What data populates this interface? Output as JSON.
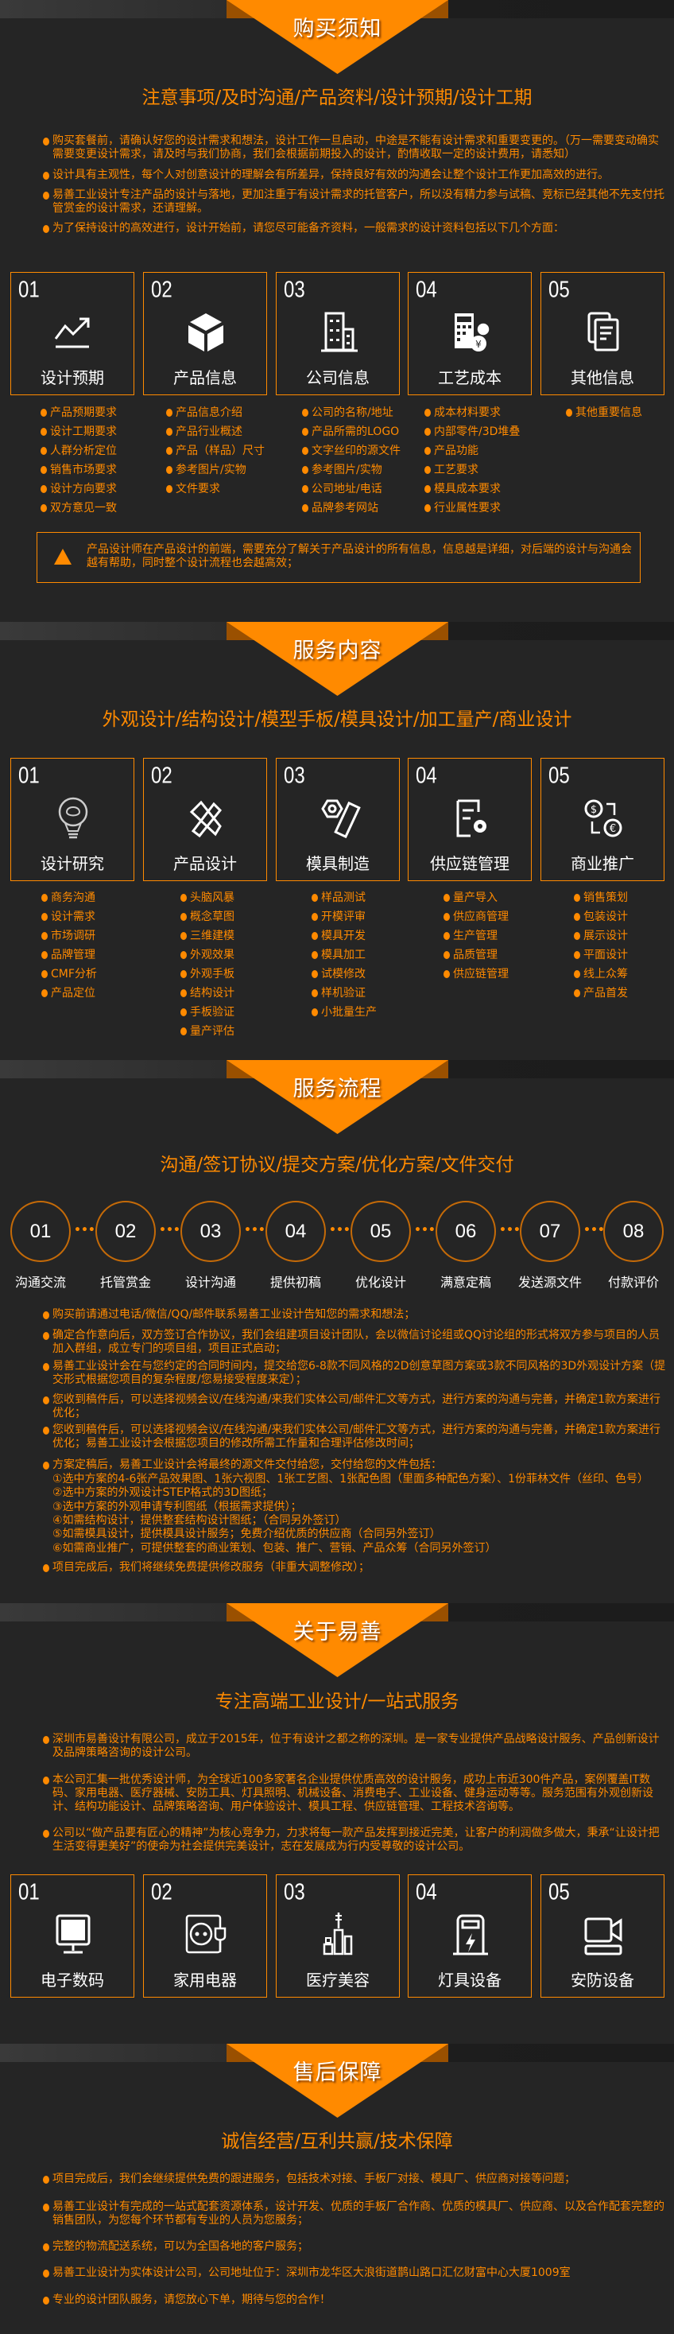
{
  "colors": {
    "accent": "#ff8a00",
    "background": "#252525",
    "text_light": "#ffffff"
  },
  "purchase": {
    "banner": "购买须知",
    "subtitle": "注意事项/及时沟通/产品资料/设计预期/设计工期",
    "bullets": [
      "购买套餐前，请确认好您的设计需求和想法，设计工作一旦启动，中途是不能有设计需求和重要变更的。（万一需要变动确实需要变更设计需求，请及时与我们协商，我们会根据前期投入的设计，酌情收取一定的设计费用，请悉知）",
      "设计具有主观性，每个人对创意设计的理解会有所差异，保持良好有效的沟通会让整个设计工作更加高效的进行。",
      "易善工业设计专注产品的设计与落地，更加注重于有设计需求的托管客户，所以没有精力参与试稿、竞标已经其他不先支付托管赏金的设计需求，还请理解。",
      "为了保持设计的高效进行，设计开始前，请您尽可能备齐资料，一般需求的设计资料包括以下几个方面："
    ],
    "cards": [
      {
        "num": "01",
        "label": "设计预期",
        "icon": "trend-chart-icon",
        "items": [
          "产品预期要求",
          "设计工期要求",
          "人群分析定位",
          "销售市场要求",
          "设计方向要求",
          "双方意见一致"
        ]
      },
      {
        "num": "02",
        "label": "产品信息",
        "icon": "cube-icon",
        "items": [
          "产品信息介绍",
          "产品行业概述",
          "产品（样品）尺寸",
          "参考图片/实物",
          "文件要求"
        ]
      },
      {
        "num": "03",
        "label": "公司信息",
        "icon": "building-icon",
        "items": [
          "公司的名称/地址",
          "产品所需的LOGO",
          "文字丝印的源文件",
          "参考图片/实物",
          "公司地址/电话",
          "品牌参考网站"
        ]
      },
      {
        "num": "04",
        "label": "工艺成本",
        "icon": "calculator-estimate-icon",
        "items": [
          "成本材料要求",
          "内部零件/3D堆叠",
          "产品功能",
          "工艺要求",
          "模具成本要求",
          "行业属性要求"
        ]
      },
      {
        "num": "05",
        "label": "其他信息",
        "icon": "documents-icon",
        "items": [
          "其他重要信息"
        ]
      }
    ],
    "notice": "产品设计师在产品设计的前端，需要充分了解关于产品设计的所有信息，信息越是详细，对后端的设计与沟通会越有帮助，同时整个设计流程也会越高效；"
  },
  "services": {
    "banner": "服务内容",
    "subtitle": "外观设计/结构设计/模型手板/模具设计/加工量产/商业设计",
    "cards": [
      {
        "num": "01",
        "label": "设计研究",
        "icon": "brain-bulb-icon",
        "items": [
          "商务沟通",
          "设计需求",
          "市场调研",
          "品牌管理",
          "CMF分析",
          "产品定位"
        ]
      },
      {
        "num": "02",
        "label": "产品设计",
        "icon": "pencil-ruler-icon",
        "items": [
          "头脑风暴",
          "概念草图",
          "三维建模",
          "外观效果",
          "外观手板",
          "结构设计",
          "手板验证",
          "量产评估"
        ]
      },
      {
        "num": "03",
        "label": "模具制造",
        "icon": "nut-bolt-icon",
        "items": [
          "样品测试",
          "开模评审",
          "模具开发",
          "模具加工",
          "试模修改",
          "样机验证",
          "小批量生产"
        ]
      },
      {
        "num": "04",
        "label": "供应链管理",
        "icon": "document-gear-icon",
        "items": [
          "量产导入",
          "供应商管理",
          "生产管理",
          "品质管理",
          "供应链管理"
        ]
      },
      {
        "num": "05",
        "label": "商业推广",
        "icon": "currency-exchange-icon",
        "items": [
          "销售策划",
          "包装设计",
          "展示设计",
          "平面设计",
          "线上众筹",
          "产品首发"
        ]
      }
    ]
  },
  "process": {
    "banner": "服务流程",
    "subtitle": "沟通/签订协议/提交方案/优化方案/文件交付",
    "steps": [
      {
        "num": "01",
        "label": "沟通交流"
      },
      {
        "num": "02",
        "label": "托管赏金"
      },
      {
        "num": "03",
        "label": "设计沟通"
      },
      {
        "num": "04",
        "label": "提供初稿"
      },
      {
        "num": "05",
        "label": "优化设计"
      },
      {
        "num": "06",
        "label": "满意定稿"
      },
      {
        "num": "07",
        "label": "发送源文件"
      },
      {
        "num": "08",
        "label": "付款评价"
      }
    ],
    "connector": "•••",
    "bullets": [
      "购买前请通过电话/微信/QQ/邮件联系易善工业设计告知您的需求和想法；",
      "确定合作意向后，双方签订合作协议，我们会组建项目设计团队，会以微信讨论组或QQ讨论组的形式将双方参与项目的人员加入群组，成立专门的项目组，项目正式启动；",
      "易善工业设计会在与您约定的合同时间内，提交给您6-8款不同风格的2D创意草图方案或3款不同风格的3D外观设计方案（提交形式根据您项目的复杂程度/您易接受程度来定）；",
      "您收到稿件后，可以选择视频会议/在线沟通/来我们实体公司/邮件汇文等方式，进行方案的沟通与完善，并确定1款方案进行优化；",
      "您收到稿件后，可以选择视频会议/在线沟通/来我们实体公司/邮件汇文等方式，进行方案的沟通与完善，并确定1款方案进行优化；易善工业设计会根据您项目的修改所需工作量和合理评估修改时间；",
      "方案定稿后，易善工业设计会将最终的源文件交付给您，交付给您的文件包括：",
      "项目完成后，我们将继续免费提供修改服务（非重大调整修改）；"
    ],
    "deliverables": [
      "①选中方案的4-6张产品效果图、1张六视图、1张工艺图、1张配色图（里面多种配色方案）、1份菲林文件（丝印、色号）",
      "②选中方案的外观设计STEP格式的3D图纸；",
      "③选中方案的外观申请专利图纸（根据需求提供）；",
      "④如需结构设计，提供整套结构设计图纸；（合同另外签订）",
      "⑤如需模具设计，提供模具设计服务；免费介绍优质的供应商（合同另外签订）",
      "⑥如需商业推广，可提供整套的商业策划、包装、推广、营销、产品众筹（合同另外签订）"
    ]
  },
  "about": {
    "banner": "关于易善",
    "subtitle": "专注高端工业设计/一站式服务",
    "bullets": [
      "深圳市易善设计有限公司，成立于2015年，位于有设计之都之称的深圳。是一家专业提供产品战略设计服务、产品创新设计及品牌策略咨询的设计公司。",
      "本公司汇集一批优秀设计师，为全球近100多家著名企业提供优质高效的设计服务，成功上市近300件产品，案例覆盖IT数码、家用电器、医疗器械、安防工具、灯具照明、机械设备、消费电子、工业设备、健身运动等等。服务范围有外观创新设计、结构功能设计、品牌策略咨询、用户体验设计、模具工程、供应链管理、工程技术咨询等。",
      "公司以“做产品要有匠心的精神”为核心竞争力，力求将每一款产品发挥到接近完美，让客户的利润做多做大，秉承“让设计把生活变得更美好”的使命为社会提供完美设计，志在发展成为行内受尊敬的设计公司。"
    ],
    "cards": [
      {
        "num": "01",
        "label": "电子数码",
        "icon": "monitor-icon"
      },
      {
        "num": "02",
        "label": "家用电器",
        "icon": "socket-plug-icon"
      },
      {
        "num": "03",
        "label": "医疗美容",
        "icon": "cosmetics-icon"
      },
      {
        "num": "04",
        "label": "灯具设备",
        "icon": "charging-station-icon"
      },
      {
        "num": "05",
        "label": "安防设备",
        "icon": "video-camera-icon"
      }
    ]
  },
  "aftersales": {
    "banner": "售后保障",
    "subtitle": "诚信经营/互利共赢/技术保障",
    "bullets": [
      "项目完成后，我们会继续提供免费的跟进服务，包括技术对接、手板厂对接、模具厂、供应商对接等问题；",
      "易善工业设计有完成的一站式配套资源体系，设计开发、优质的手板厂合作商、优质的模具厂、供应商、以及合作配套完整的销售团队，为您每个环节都有专业的人员为您服务；",
      "完整的物流配送系统，可以为全国各地的客户服务；",
      "易善工业设计为实体设计公司，公司地址位于：深圳市龙华区大浪街道鹊山路口汇亿财富中心大厦1009室",
      "专业的设计团队服务，请您放心下单，期待与您的合作！"
    ]
  }
}
